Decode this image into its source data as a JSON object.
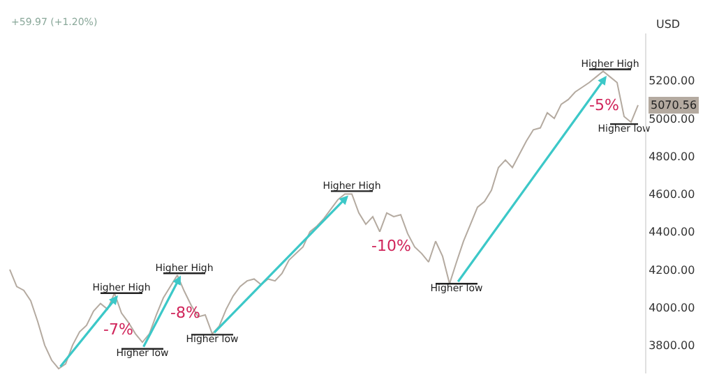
{
  "chart_data": {
    "type": "line",
    "subtitle": "+59.97 (+1.20%)",
    "ylabel": "USD",
    "categories": [
      null,
      null,
      null,
      null,
      null,
      null,
      null,
      null,
      null,
      null,
      null,
      null,
      null,
      null,
      null,
      null,
      null,
      null,
      null,
      null,
      null,
      null,
      null,
      null,
      null,
      null,
      null,
      null,
      null,
      null,
      null,
      null,
      null,
      null,
      null,
      null,
      null,
      null,
      null,
      null,
      null,
      null,
      null,
      null,
      null,
      null,
      null,
      null,
      null,
      null,
      null,
      null,
      null,
      null,
      null,
      null,
      null,
      null,
      null,
      null,
      null,
      null,
      null,
      null,
      null,
      null,
      null,
      null,
      null,
      null,
      null,
      null,
      null,
      null,
      null,
      null,
      null,
      null,
      null,
      null,
      null,
      null,
      null,
      null,
      null,
      null,
      null,
      null,
      null,
      null,
      null
    ],
    "series": [
      {
        "color": "#b4aaa0",
        "values": [
          4200,
          4110,
          4090,
          4035,
          3925,
          3800,
          3720,
          3675,
          3700,
          3800,
          3870,
          3905,
          3980,
          4020,
          3990,
          4075,
          3970,
          3920,
          3860,
          3815,
          3860,
          3960,
          4050,
          4110,
          4170,
          4085,
          4010,
          3950,
          3960,
          3860,
          3900,
          3990,
          4060,
          4110,
          4140,
          4150,
          4120,
          4150,
          4140,
          4180,
          4250,
          4285,
          4320,
          4400,
          4430,
          4470,
          4520,
          4570,
          4600,
          4600,
          4500,
          4440,
          4480,
          4400,
          4500,
          4480,
          4490,
          4390,
          4320,
          4285,
          4240,
          4350,
          4270,
          4125,
          4240,
          4350,
          4440,
          4530,
          4560,
          4620,
          4740,
          4780,
          4740,
          4810,
          4880,
          4940,
          4950,
          5030,
          5000,
          5075,
          5100,
          5140,
          5165,
          5190,
          5220,
          5250,
          5220,
          5190,
          5010,
          4980,
          5070.56
        ],
        "value_labels": [
          null,
          null,
          null,
          null,
          null,
          null,
          null,
          null,
          null,
          null,
          null,
          null,
          null,
          null,
          null,
          null,
          null,
          null,
          null,
          null,
          null,
          null,
          null,
          null,
          null,
          null,
          null,
          null,
          null,
          null,
          null,
          null,
          null,
          null,
          null,
          null,
          null,
          null,
          null,
          null,
          null,
          null,
          null,
          null,
          null,
          null,
          null,
          null,
          null,
          null,
          null,
          null,
          null,
          null,
          null,
          null,
          null,
          null,
          null,
          null,
          null,
          null,
          null,
          null,
          null,
          null,
          null,
          null,
          null,
          null,
          null,
          null,
          null,
          null,
          null,
          null,
          null,
          null,
          null,
          null,
          null,
          null,
          null,
          null,
          null,
          null,
          null,
          null,
          null,
          null,
          "5070.56"
        ]
      },
      {
        "color": "#222222",
        "values": [
          null,
          null,
          null,
          null,
          null,
          null,
          null,
          null,
          null,
          null,
          null,
          null,
          null,
          4075,
          null,
          null,
          4075,
          null,
          null,
          4075,
          null,
          null,
          null,
          null,
          null,
          null,
          null,
          null,
          null,
          null,
          null,
          null,
          null,
          null,
          null,
          null,
          null,
          null,
          null,
          null,
          null,
          null,
          null,
          null,
          null,
          null,
          null,
          null,
          null,
          null,
          null,
          null,
          null,
          null,
          null,
          null,
          null,
          null,
          null,
          null,
          null,
          null,
          null,
          null,
          null,
          null,
          null,
          null,
          null,
          null,
          null,
          null,
          null,
          null,
          null,
          null,
          null,
          null,
          null,
          null,
          null,
          null,
          null,
          null,
          null,
          null,
          null,
          null,
          null,
          null,
          null
        ],
        "value_labels": [
          null,
          null,
          null,
          null,
          null,
          null,
          null,
          null,
          null,
          null,
          null,
          null,
          null,
          null,
          null,
          null,
          "Higher High",
          null,
          null,
          null,
          null,
          null,
          null,
          null,
          null,
          null,
          null,
          null,
          null,
          null,
          null,
          null,
          null,
          null,
          null,
          null,
          null,
          null,
          null,
          null,
          null,
          null,
          null,
          null,
          null,
          null,
          null,
          null,
          null,
          null,
          null,
          null,
          null,
          null,
          null,
          null,
          null,
          null,
          null,
          null,
          null,
          null,
          null,
          null,
          null,
          null,
          null,
          null,
          null,
          null,
          null,
          null,
          null,
          null,
          null,
          null,
          null,
          null,
          null,
          null,
          null,
          null,
          null,
          null,
          null,
          null,
          null,
          null,
          null,
          null,
          null
        ]
      },
      {
        "color": "#222222",
        "values": [
          null,
          null,
          null,
          null,
          null,
          null,
          null,
          null,
          null,
          null,
          null,
          null,
          null,
          null,
          null,
          null,
          3780,
          null,
          null,
          3780,
          null,
          null,
          3780,
          null,
          null,
          null,
          null,
          null,
          null,
          null,
          null,
          null,
          null,
          null,
          null,
          null,
          null,
          null,
          null,
          null,
          null,
          null,
          null,
          null,
          null,
          null,
          null,
          null,
          null,
          null,
          null,
          null,
          null,
          null,
          null,
          null,
          null,
          null,
          null,
          null,
          null,
          null,
          null,
          null,
          null,
          null,
          null,
          null,
          null,
          null,
          null,
          null,
          null,
          null,
          null,
          null,
          null,
          null,
          null,
          null,
          null,
          null,
          null,
          null,
          null,
          null,
          null,
          null,
          null,
          null,
          null
        ],
        "value_labels": [
          null,
          null,
          null,
          null,
          null,
          null,
          null,
          null,
          null,
          null,
          null,
          null,
          null,
          null,
          null,
          null,
          null,
          null,
          null,
          "Higher low",
          null,
          null,
          null,
          null,
          null,
          null,
          null,
          null,
          null,
          null,
          null,
          null,
          null,
          null,
          null,
          null,
          null,
          null,
          null,
          null,
          null,
          null,
          null,
          null,
          null,
          null,
          null,
          null,
          null,
          null,
          null,
          null,
          null,
          null,
          null,
          null,
          null,
          null,
          null,
          null,
          null,
          null,
          null,
          null,
          null,
          null,
          null,
          null,
          null,
          null,
          null,
          null,
          null,
          null,
          null,
          null,
          null,
          null,
          null,
          null,
          null,
          null,
          null,
          null,
          null,
          null,
          null,
          null,
          null,
          null,
          null
        ]
      },
      {
        "color": "#222222",
        "values": [
          null,
          null,
          null,
          null,
          null,
          null,
          null,
          null,
          null,
          null,
          null,
          null,
          null,
          null,
          null,
          null,
          null,
          null,
          null,
          null,
          null,
          null,
          4180,
          null,
          null,
          4180,
          null,
          null,
          4180,
          null,
          null,
          null,
          null,
          null,
          null,
          null,
          null,
          null,
          null,
          null,
          null,
          null,
          null,
          null,
          null,
          null,
          null,
          null,
          null,
          null,
          null,
          null,
          null,
          null,
          null,
          null,
          null,
          null,
          null,
          null,
          null,
          null,
          null,
          null,
          null,
          null,
          null,
          null,
          null,
          null,
          null,
          null,
          null,
          null,
          null,
          null,
          null,
          null,
          null,
          null,
          null,
          null,
          null,
          null,
          null,
          null,
          null,
          null,
          null,
          null,
          null
        ],
        "value_labels": [
          null,
          null,
          null,
          null,
          null,
          null,
          null,
          null,
          null,
          null,
          null,
          null,
          null,
          null,
          null,
          null,
          null,
          null,
          null,
          null,
          null,
          null,
          null,
          null,
          null,
          "Higher High",
          null,
          null,
          null,
          null,
          null,
          null,
          null,
          null,
          null,
          null,
          null,
          null,
          null,
          null,
          null,
          null,
          null,
          null,
          null,
          null,
          null,
          null,
          null,
          null,
          null,
          null,
          null,
          null,
          null,
          null,
          null,
          null,
          null,
          null,
          null,
          null,
          null,
          null,
          null,
          null,
          null,
          null,
          null,
          null,
          null,
          null,
          null,
          null,
          null,
          null,
          null,
          null,
          null,
          null,
          null,
          null,
          null,
          null,
          null,
          null,
          null,
          null,
          null,
          null,
          null
        ]
      },
      {
        "color": "#222222",
        "values": [
          null,
          null,
          null,
          null,
          null,
          null,
          null,
          null,
          null,
          null,
          null,
          null,
          null,
          null,
          null,
          null,
          null,
          null,
          null,
          null,
          null,
          null,
          null,
          null,
          null,
          null,
          3855,
          null,
          null,
          3855,
          null,
          null,
          3855,
          null,
          null,
          null,
          null,
          null,
          null,
          null,
          null,
          null,
          null,
          null,
          null,
          null,
          null,
          null,
          null,
          null,
          null,
          null,
          null,
          null,
          null,
          null,
          null,
          null,
          null,
          null,
          null,
          null,
          null,
          null,
          null,
          null,
          null,
          null,
          null,
          null,
          null,
          null,
          null,
          null,
          null,
          null,
          null,
          null,
          null,
          null,
          null,
          null,
          null,
          null,
          null,
          null,
          null,
          null,
          null,
          null,
          null
        ],
        "value_labels": [
          null,
          null,
          null,
          null,
          null,
          null,
          null,
          null,
          null,
          null,
          null,
          null,
          null,
          null,
          null,
          null,
          null,
          null,
          null,
          null,
          null,
          null,
          null,
          null,
          null,
          null,
          null,
          null,
          null,
          "Higher low",
          null,
          null,
          null,
          null,
          null,
          null,
          null,
          null,
          null,
          null,
          null,
          null,
          null,
          null,
          null,
          null,
          null,
          null,
          null,
          null,
          null,
          null,
          null,
          null,
          null,
          null,
          null,
          null,
          null,
          null,
          null,
          null,
          null,
          null,
          null,
          null,
          null,
          null,
          null,
          null,
          null,
          null,
          null,
          null,
          null,
          null,
          null,
          null,
          null,
          null,
          null,
          null,
          null,
          null,
          null,
          null,
          null,
          null,
          null,
          null,
          null
        ]
      },
      {
        "color": "#222222",
        "values": [
          null,
          null,
          null,
          null,
          null,
          null,
          null,
          null,
          null,
          null,
          null,
          null,
          null,
          null,
          null,
          null,
          null,
          null,
          null,
          null,
          null,
          null,
          null,
          null,
          null,
          null,
          null,
          null,
          null,
          null,
          null,
          null,
          null,
          null,
          null,
          null,
          null,
          null,
          null,
          null,
          null,
          null,
          null,
          null,
          null,
          null,
          4615,
          null,
          null,
          4615,
          null,
          null,
          4615,
          null,
          null,
          null,
          null,
          null,
          null,
          null,
          null,
          null,
          null,
          null,
          null,
          null,
          null,
          null,
          null,
          null,
          null,
          null,
          null,
          null,
          null,
          null,
          null,
          null,
          null,
          null,
          null,
          null,
          null,
          null,
          null,
          null,
          null,
          null,
          null,
          null,
          null
        ],
        "value_labels": [
          null,
          null,
          null,
          null,
          null,
          null,
          null,
          null,
          null,
          null,
          null,
          null,
          null,
          null,
          null,
          null,
          null,
          null,
          null,
          null,
          null,
          null,
          null,
          null,
          null,
          null,
          null,
          null,
          null,
          null,
          null,
          null,
          null,
          null,
          null,
          null,
          null,
          null,
          null,
          null,
          null,
          null,
          null,
          null,
          null,
          null,
          null,
          null,
          null,
          "Higher High",
          null,
          null,
          null,
          null,
          null,
          null,
          null,
          null,
          null,
          null,
          null,
          null,
          null,
          null,
          null,
          null,
          null,
          null,
          null,
          null,
          null,
          null,
          null,
          null,
          null,
          null,
          null,
          null,
          null,
          null,
          null,
          null,
          null,
          null,
          null,
          null,
          null,
          null,
          null,
          null,
          null
        ]
      },
      {
        "color": "#222222",
        "values": [
          null,
          null,
          null,
          null,
          null,
          null,
          null,
          null,
          null,
          null,
          null,
          null,
          null,
          null,
          null,
          null,
          null,
          null,
          null,
          null,
          null,
          null,
          null,
          null,
          null,
          null,
          null,
          null,
          null,
          null,
          null,
          null,
          null,
          null,
          null,
          null,
          null,
          null,
          null,
          null,
          null,
          null,
          null,
          null,
          null,
          null,
          null,
          null,
          null,
          null,
          null,
          null,
          null,
          null,
          null,
          null,
          null,
          null,
          null,
          null,
          null,
          4125,
          null,
          null,
          4125,
          null,
          null,
          4125,
          null,
          null,
          null,
          null,
          null,
          null,
          null,
          null,
          null,
          null,
          null,
          null,
          null,
          null,
          null,
          null,
          null,
          null,
          null,
          null,
          null,
          null,
          null
        ],
        "value_labels": [
          null,
          null,
          null,
          null,
          null,
          null,
          null,
          null,
          null,
          null,
          null,
          null,
          null,
          null,
          null,
          null,
          null,
          null,
          null,
          null,
          null,
          null,
          null,
          null,
          null,
          null,
          null,
          null,
          null,
          null,
          null,
          null,
          null,
          null,
          null,
          null,
          null,
          null,
          null,
          null,
          null,
          null,
          null,
          null,
          null,
          null,
          null,
          null,
          null,
          null,
          null,
          null,
          null,
          null,
          null,
          null,
          null,
          null,
          null,
          null,
          null,
          null,
          null,
          null,
          "Higher low",
          null,
          null,
          null,
          null,
          null,
          null,
          null,
          null,
          null,
          null,
          null,
          null,
          null,
          null,
          null,
          null,
          null,
          null,
          null,
          null,
          null,
          null,
          null,
          null,
          null,
          null
        ]
      },
      {
        "color": "#222222",
        "values": [
          null,
          null,
          null,
          null,
          null,
          null,
          null,
          null,
          null,
          null,
          null,
          null,
          null,
          null,
          null,
          null,
          null,
          null,
          null,
          null,
          null,
          null,
          null,
          null,
          null,
          null,
          null,
          null,
          null,
          null,
          null,
          null,
          null,
          null,
          null,
          null,
          null,
          null,
          null,
          null,
          null,
          null,
          null,
          null,
          null,
          null,
          null,
          null,
          null,
          null,
          null,
          null,
          null,
          null,
          null,
          null,
          null,
          null,
          null,
          null,
          null,
          null,
          null,
          null,
          null,
          null,
          null,
          null,
          null,
          null,
          null,
          null,
          null,
          null,
          null,
          null,
          null,
          null,
          null,
          null,
          null,
          null,
          null,
          5260,
          null,
          null,
          5260,
          null,
          null,
          5260,
          null
        ],
        "value_labels": [
          null,
          null,
          null,
          null,
          null,
          null,
          null,
          null,
          null,
          null,
          null,
          null,
          null,
          null,
          null,
          null,
          null,
          null,
          null,
          null,
          null,
          null,
          null,
          null,
          null,
          null,
          null,
          null,
          null,
          null,
          null,
          null,
          null,
          null,
          null,
          null,
          null,
          null,
          null,
          null,
          null,
          null,
          null,
          null,
          null,
          null,
          null,
          null,
          null,
          null,
          null,
          null,
          null,
          null,
          null,
          null,
          null,
          null,
          null,
          null,
          null,
          null,
          null,
          null,
          null,
          null,
          null,
          null,
          null,
          null,
          null,
          null,
          null,
          null,
          null,
          null,
          null,
          null,
          null,
          null,
          null,
          null,
          null,
          null,
          null,
          null,
          "Higher High",
          null,
          null,
          null,
          null
        ]
      },
      {
        "color": "#222222",
        "values": [
          null,
          null,
          null,
          null,
          null,
          null,
          null,
          null,
          null,
          null,
          null,
          null,
          null,
          null,
          null,
          null,
          null,
          null,
          null,
          null,
          null,
          null,
          null,
          null,
          null,
          null,
          null,
          null,
          null,
          null,
          null,
          null,
          null,
          null,
          null,
          null,
          null,
          null,
          null,
          null,
          null,
          null,
          null,
          null,
          null,
          null,
          null,
          null,
          null,
          null,
          null,
          null,
          null,
          null,
          null,
          null,
          null,
          null,
          null,
          null,
          null,
          null,
          null,
          null,
          null,
          null,
          null,
          null,
          null,
          null,
          null,
          null,
          null,
          null,
          null,
          null,
          null,
          null,
          null,
          null,
          null,
          null,
          null,
          null,
          null,
          null,
          4970,
          null,
          4970,
          null,
          4970
        ],
        "value_labels": [
          null,
          null,
          null,
          null,
          null,
          null,
          null,
          null,
          null,
          null,
          null,
          null,
          null,
          null,
          null,
          null,
          null,
          null,
          null,
          null,
          null,
          null,
          null,
          null,
          null,
          null,
          null,
          null,
          null,
          null,
          null,
          null,
          null,
          null,
          null,
          null,
          null,
          null,
          null,
          null,
          null,
          null,
          null,
          null,
          null,
          null,
          null,
          null,
          null,
          null,
          null,
          null,
          null,
          null,
          null,
          null,
          null,
          null,
          null,
          null,
          null,
          null,
          null,
          null,
          null,
          null,
          null,
          null,
          null,
          null,
          null,
          null,
          null,
          null,
          null,
          null,
          null,
          null,
          null,
          null,
          null,
          null,
          null,
          null,
          null,
          null,
          null,
          null,
          "Higher low",
          null,
          null
        ]
      }
    ],
    "annotations": [
      "-7%",
      "-8%",
      "-10%",
      "-5%"
    ],
    "ylim": [
      3650,
      5450
    ],
    "yticks": [
      {
        "value": 3800,
        "label": "3800.00"
      },
      {
        "value": 4000,
        "label": "4000.00"
      },
      {
        "value": 4200,
        "label": "4200.00"
      },
      {
        "value": 4400,
        "label": "4400.00"
      },
      {
        "value": 4600,
        "label": "4600.00"
      },
      {
        "value": 4800,
        "label": "4800.00"
      },
      {
        "value": 5000,
        "label": "5000.00"
      },
      {
        "value": 5200,
        "label": "5200.00"
      }
    ],
    "tick_labels": "y",
    "marker": "none",
    "line_style": "solid"
  }
}
